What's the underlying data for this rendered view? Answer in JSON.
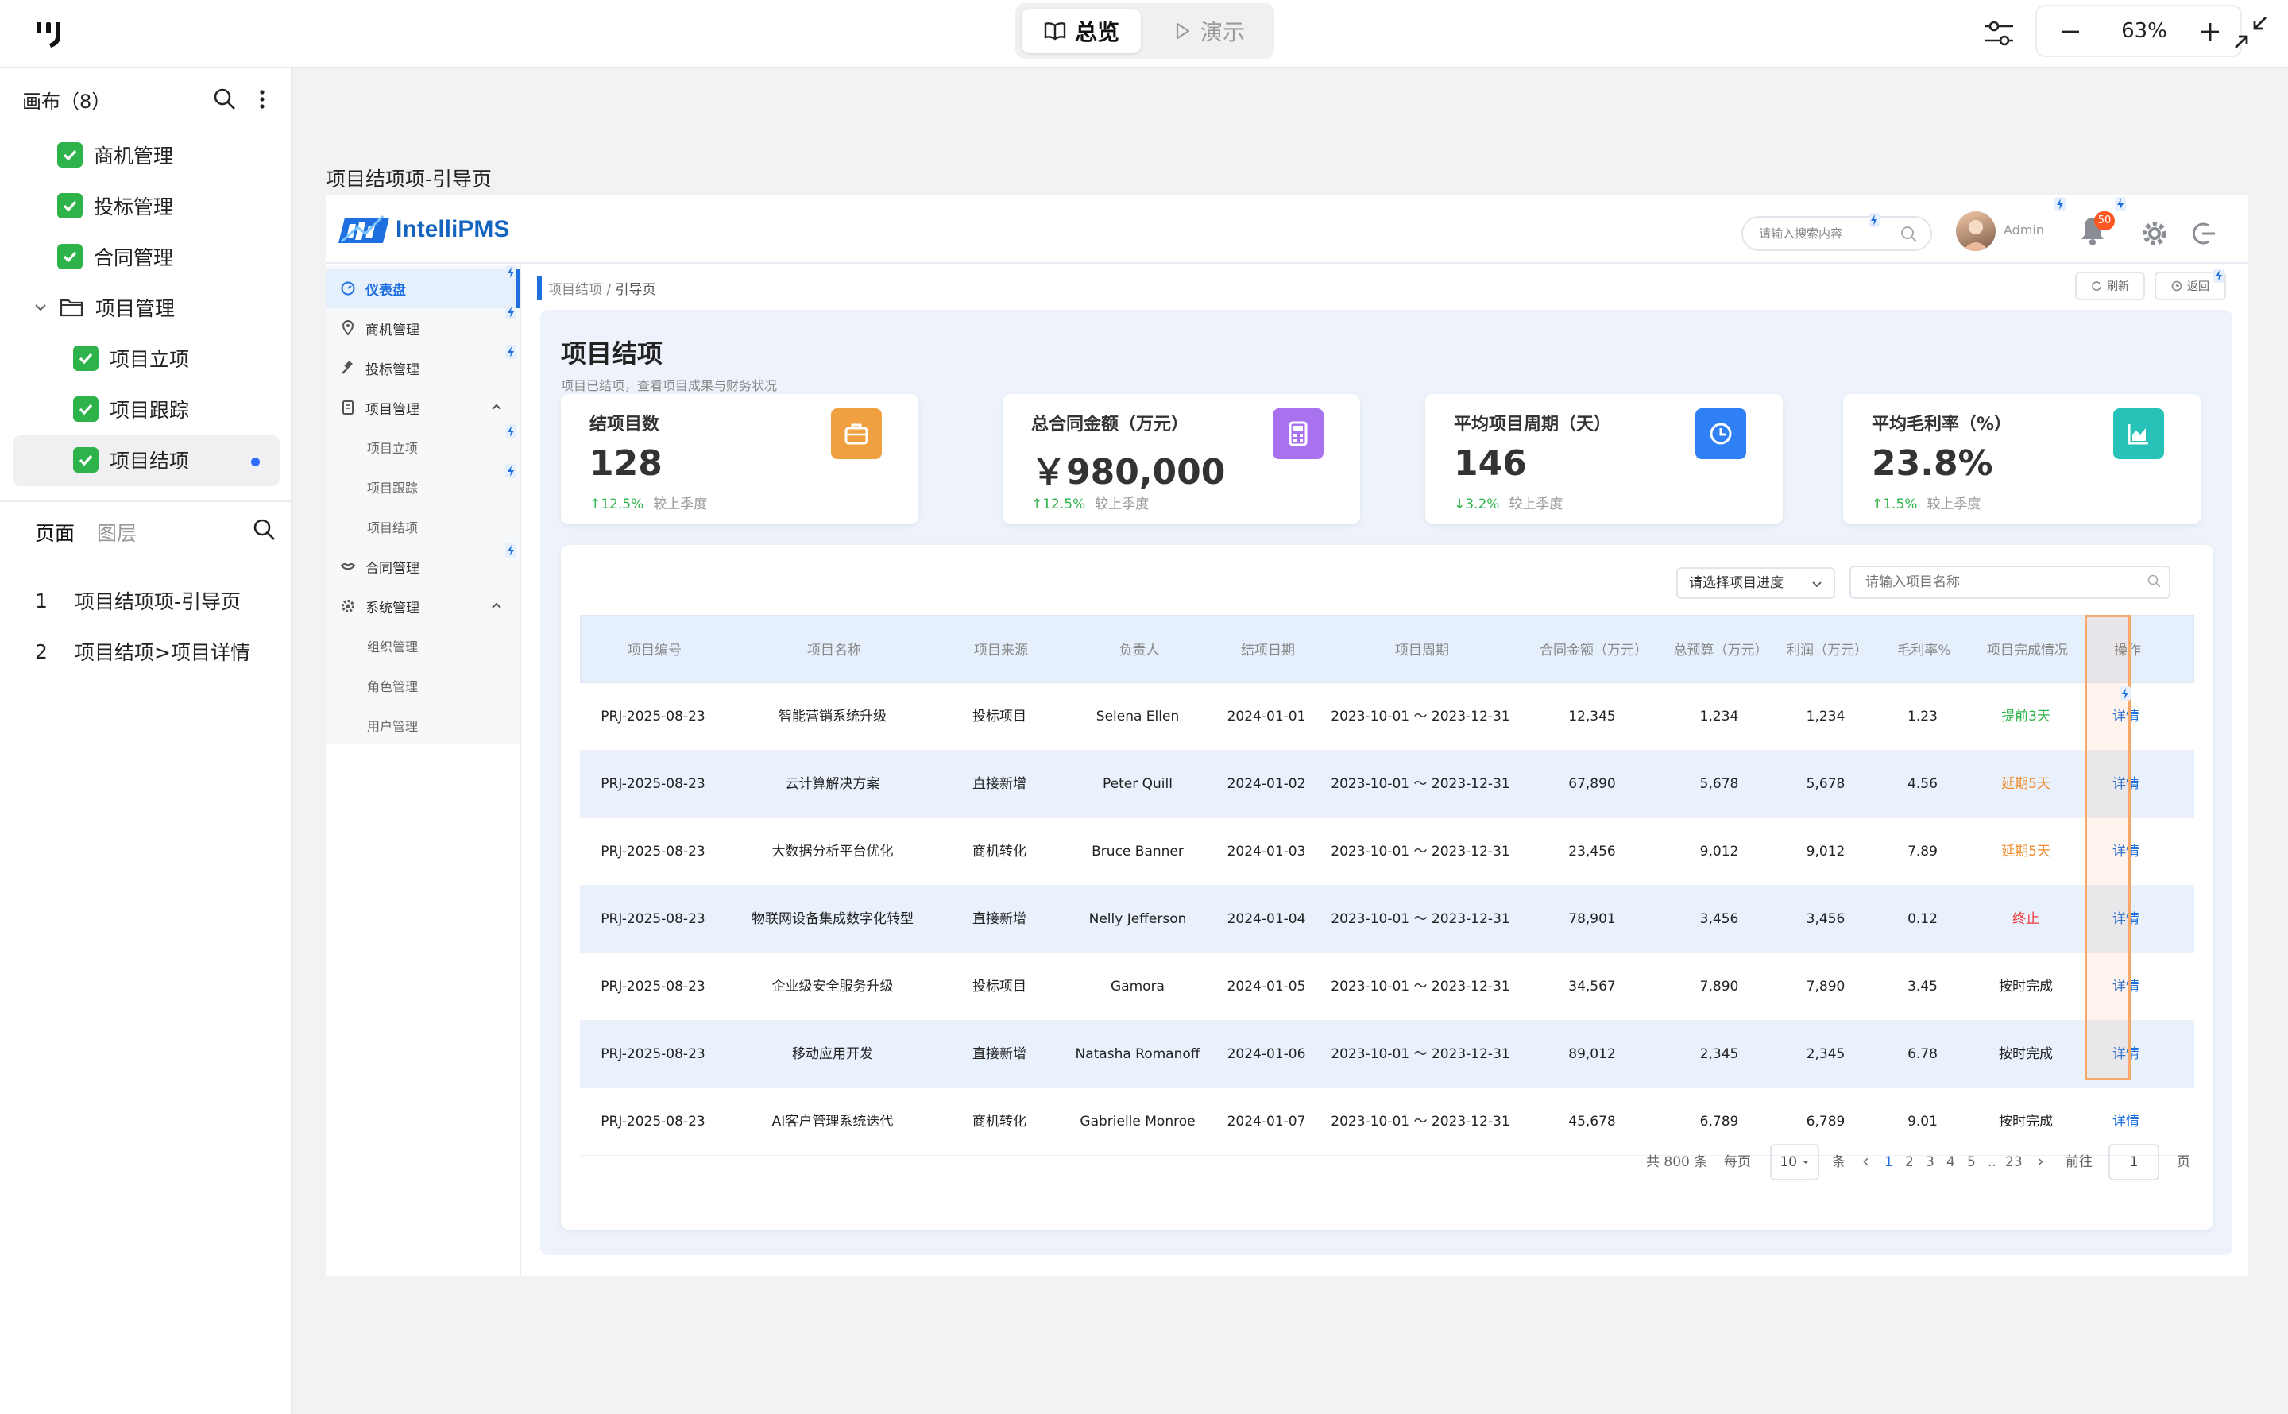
{
  "toolbar": {
    "mode_overview": "总览",
    "mode_present": "演示",
    "zoom": "63%"
  },
  "left_panel": {
    "canvas_header": "画布（8）",
    "tree": [
      {
        "label": "商机管理",
        "checked": true
      },
      {
        "label": "投标管理",
        "checked": true
      },
      {
        "label": "合同管理",
        "checked": true
      },
      {
        "label": "项目管理",
        "folder": true
      },
      {
        "label": "项目立项",
        "checked": true
      },
      {
        "label": "项目跟踪",
        "checked": true
      },
      {
        "label": "项目结项",
        "checked": true,
        "selected": true
      }
    ],
    "tab_pages": "页面",
    "tab_layers": "图层",
    "pages": [
      {
        "num": "1",
        "label": "项目结项项-引导页"
      },
      {
        "num": "2",
        "label": "项目结项>项目详情"
      }
    ]
  },
  "artboard": {
    "title": "项目结项项-引导页"
  },
  "app": {
    "name": "IntelliPMS",
    "search_placeholder": "请输入搜索内容",
    "user": "Admin",
    "notifications": "50",
    "nav": [
      {
        "label": "仪表盘",
        "active": true
      },
      {
        "label": "商机管理"
      },
      {
        "label": "投标管理"
      },
      {
        "label": "项目管理",
        "expanded": true
      },
      {
        "label": "项目立项",
        "sub": true
      },
      {
        "label": "项目跟踪",
        "sub": true
      },
      {
        "label": "项目结项",
        "sub": true
      },
      {
        "label": "合同管理"
      },
      {
        "label": "系统管理",
        "expanded": true
      },
      {
        "label": "组织管理",
        "sub": true
      },
      {
        "label": "角色管理",
        "sub": true
      },
      {
        "label": "用户管理",
        "sub": true
      }
    ],
    "breadcrumb_parent": "项目结项",
    "breadcrumb_sep": "/",
    "breadcrumb_current": "引导页",
    "refresh": "刷新",
    "back": "返回",
    "page_title": "项目结项",
    "page_subtitle": "项目已结项，查看项目成果与财务状况",
    "stats": [
      {
        "label": "结项目数",
        "value": "128",
        "trend": "↑12.5%",
        "compare": "较上季度",
        "color": "#f0a041"
      },
      {
        "label": "总合同金额（万元）",
        "value": "￥980,000",
        "trend": "↑12.5%",
        "compare": "较上季度",
        "color": "#a872ef"
      },
      {
        "label": "平均项目周期（天）",
        "value": "146",
        "trend": "↓3.2%",
        "compare": "较上季度",
        "color": "#2f7ff5"
      },
      {
        "label": "平均毛利率（%）",
        "value": "23.8%",
        "trend": "↑1.5%",
        "compare": "较上季度",
        "color": "#27c2b8"
      }
    ],
    "filter_progress": "请选择项目进度",
    "filter_name_placeholder": "请输入项目名称",
    "columns": [
      "项目编号",
      "项目名称",
      "项目来源",
      "负责人",
      "结项日期",
      "项目周期",
      "合同金额（万元）",
      "总预算（万元）",
      "利润（万元）",
      "毛利率%",
      "项目完成情况",
      "操作"
    ],
    "rows": [
      {
        "id": "PRJ-2025-08-23",
        "name": "智能营销系统升级",
        "source": "投标项目",
        "owner": "Selena Ellen",
        "date": "2024-01-01",
        "period": "2023-10-01 ～ 2023-12-31",
        "contract": "12,345",
        "budget": "1,234",
        "profit": "1,234",
        "margin": "1.23",
        "status": "提前3天",
        "status_color": "#2db34a",
        "op": "详情"
      },
      {
        "id": "PRJ-2025-08-23",
        "name": "云计算解决方案",
        "source": "直接新增",
        "owner": "Peter Quill",
        "date": "2024-01-02",
        "period": "2023-10-01 ～ 2023-12-31",
        "contract": "67,890",
        "budget": "5,678",
        "profit": "5,678",
        "margin": "4.56",
        "status": "延期5天",
        "status_color": "#f08c2c",
        "op": "详情"
      },
      {
        "id": "PRJ-2025-08-23",
        "name": "大数据分析平台优化",
        "source": "商机转化",
        "owner": "Bruce Banner",
        "date": "2024-01-03",
        "period": "2023-10-01 ～ 2023-12-31",
        "contract": "23,456",
        "budget": "9,012",
        "profit": "9,012",
        "margin": "7.89",
        "status": "延期5天",
        "status_color": "#f08c2c",
        "op": "详情"
      },
      {
        "id": "PRJ-2025-08-23",
        "name": "物联网设备集成数字化转型",
        "source": "直接新增",
        "owner": "Nelly Jefferson",
        "date": "2024-01-04",
        "period": "2023-10-01 ～ 2023-12-31",
        "contract": "78,901",
        "budget": "3,456",
        "profit": "3,456",
        "margin": "0.12",
        "status": "终止",
        "status_color": "#f03a3a",
        "op": "详情"
      },
      {
        "id": "PRJ-2025-08-23",
        "name": "企业级安全服务升级",
        "source": "投标项目",
        "owner": "Gamora",
        "date": "2024-01-05",
        "period": "2023-10-01 ～ 2023-12-31",
        "contract": "34,567",
        "budget": "7,890",
        "profit": "7,890",
        "margin": "3.45",
        "status": "按时完成",
        "status_color": "#222222",
        "op": "详情"
      },
      {
        "id": "PRJ-2025-08-23",
        "name": "移动应用开发",
        "source": "直接新增",
        "owner": "Natasha Romanoff",
        "date": "2024-01-06",
        "period": "2023-10-01 ～ 2023-12-31",
        "contract": "89,012",
        "budget": "2,345",
        "profit": "2,345",
        "margin": "6.78",
        "status": "按时完成",
        "status_color": "#222222",
        "op": "详情"
      },
      {
        "id": "PRJ-2025-08-23",
        "name": "AI客户管理系统迭代",
        "source": "商机转化",
        "owner": "Gabrielle Monroe",
        "date": "2024-01-07",
        "period": "2023-10-01 ～ 2023-12-31",
        "contract": "45,678",
        "budget": "6,789",
        "profit": "6,789",
        "margin": "9.01",
        "status": "按时完成",
        "status_color": "#222222",
        "op": "详情"
      }
    ],
    "pagination": {
      "total": "共 800 条",
      "per_page_label": "每页",
      "per_page": "10",
      "unit": "条",
      "prev": "‹",
      "pages": [
        "1",
        "2",
        "3",
        "4",
        "5",
        "..",
        "23"
      ],
      "next": "›",
      "goto_label": "前往",
      "goto_value": "1",
      "page_unit": "页"
    }
  }
}
